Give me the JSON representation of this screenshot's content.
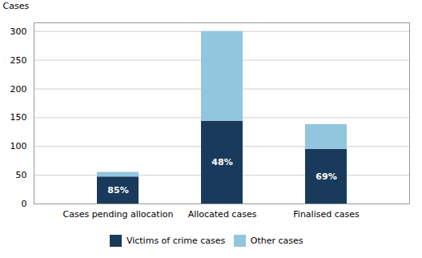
{
  "chart_data": {
    "type": "bar",
    "stacked": true,
    "ylabel": "Cases",
    "categories": [
      "Cases pending allocation",
      "Allocated cases",
      "Finalised cases"
    ],
    "series": [
      {
        "name": "Victims of crime cases",
        "color": "#1a3a5c",
        "values": [
          47,
          144,
          95
        ]
      },
      {
        "name": "Other cases",
        "color": "#92c5de",
        "values": [
          8,
          156,
          43
        ]
      }
    ],
    "annotations": [
      {
        "category": "Cases pending allocation",
        "series": "Victims of crime cases",
        "text": "85%",
        "color": "#ffffff"
      },
      {
        "category": "Allocated cases",
        "series": "Victims of crime cases",
        "text": "48%",
        "color": "#ffffff"
      },
      {
        "category": "Finalised cases",
        "series": "Victims of crime cases",
        "text": "69%",
        "color": "#ffffff"
      }
    ],
    "ylim": [
      0,
      315
    ],
    "yticks": [
      0,
      50,
      100,
      150,
      200,
      250,
      300
    ],
    "grid": true,
    "legend": "bottom"
  }
}
